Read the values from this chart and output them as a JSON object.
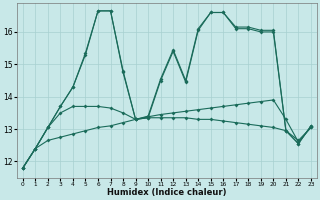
{
  "background_color": "#c8e8e8",
  "grid_color": "#a8d0d0",
  "line_color": "#1a6b5a",
  "xlabel": "Humidex (Indice chaleur)",
  "xlim": [
    -0.5,
    23.5
  ],
  "ylim": [
    11.5,
    16.9
  ],
  "yticks": [
    12,
    13,
    14,
    15,
    16
  ],
  "xticks": [
    0,
    1,
    2,
    3,
    4,
    5,
    6,
    7,
    8,
    9,
    10,
    11,
    12,
    13,
    14,
    15,
    16,
    17,
    18,
    19,
    20,
    21,
    22,
    23
  ],
  "line1_y": [
    11.8,
    12.4,
    12.65,
    12.75,
    12.85,
    12.95,
    13.05,
    13.1,
    13.2,
    13.3,
    13.38,
    13.45,
    13.5,
    13.55,
    13.6,
    13.65,
    13.7,
    13.75,
    13.8,
    13.85,
    13.9,
    13.3,
    12.6,
    13.05
  ],
  "line2_y": [
    11.8,
    12.4,
    13.05,
    13.5,
    13.7,
    13.7,
    13.7,
    13.65,
    13.5,
    13.3,
    13.35,
    13.35,
    13.35,
    13.35,
    13.3,
    13.3,
    13.25,
    13.2,
    13.15,
    13.1,
    13.05,
    12.95,
    12.65,
    13.05
  ],
  "line3_y": [
    11.8,
    12.4,
    13.05,
    13.7,
    14.3,
    15.3,
    16.65,
    16.65,
    14.75,
    13.3,
    13.35,
    14.5,
    15.4,
    14.45,
    16.05,
    16.6,
    16.6,
    16.1,
    16.1,
    16.0,
    16.0,
    12.95,
    12.55,
    13.1
  ],
  "line4_y": [
    11.8,
    12.4,
    13.05,
    13.7,
    14.3,
    15.35,
    16.65,
    16.65,
    14.8,
    13.3,
    13.4,
    14.55,
    15.45,
    14.5,
    16.1,
    16.6,
    16.6,
    16.15,
    16.15,
    16.05,
    16.05,
    12.95,
    12.55,
    13.1
  ]
}
